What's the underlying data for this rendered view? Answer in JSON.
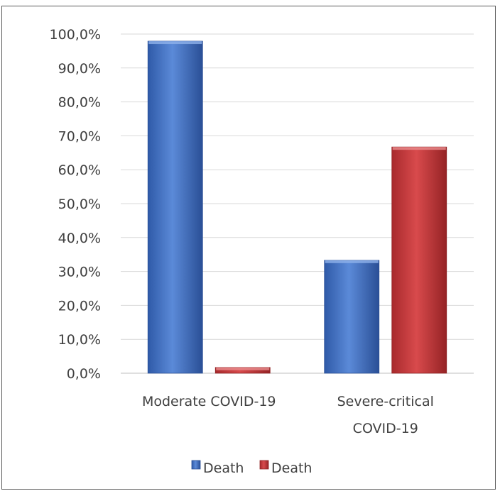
{
  "chart_data": {
    "type": "bar",
    "title": "",
    "xlabel": "",
    "ylabel": "",
    "ylim": [
      0,
      100
    ],
    "y_ticks": [
      "0,0%",
      "10,0%",
      "20,0%",
      "30,0%",
      "40,0%",
      "50,0%",
      "60,0%",
      "70,0%",
      "80,0%",
      "90,0%",
      "100,0%"
    ],
    "categories": [
      {
        "lines": [
          "Moderate COVID-19"
        ]
      },
      {
        "lines": [
          "Severe-critical",
          "COVID-19"
        ]
      }
    ],
    "series": [
      {
        "name": "Death",
        "color": "#4472c4",
        "values": [
          97.9,
          33.3
        ]
      },
      {
        "name": "Death",
        "color": "#c0393b",
        "values": [
          1.7,
          66.7
        ]
      }
    ],
    "grid": true,
    "legend_position": "bottom"
  }
}
